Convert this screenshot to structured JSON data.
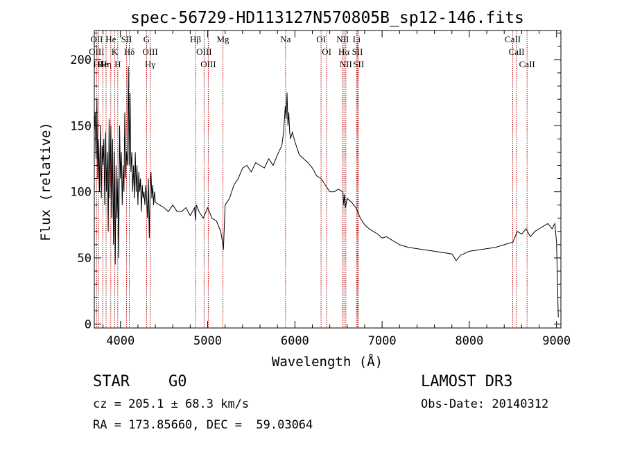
{
  "chart_data": {
    "type": "line",
    "title": "spec-56729-HD113127N570805B_sp12-146.fits",
    "xlabel": "Wavelength (Å)",
    "ylabel": "Flux (relative)",
    "xlim": [
      3700,
      9050
    ],
    "ylim": [
      -3,
      222
    ],
    "xticks": [
      4000,
      5000,
      6000,
      7000,
      8000,
      9000
    ],
    "yticks": [
      0,
      50,
      100,
      150,
      200
    ],
    "grid": false,
    "series": [
      {
        "name": "flux",
        "x": [
          3700,
          3710,
          3720,
          3730,
          3740,
          3750,
          3760,
          3770,
          3780,
          3790,
          3800,
          3810,
          3820,
          3830,
          3840,
          3850,
          3860,
          3870,
          3880,
          3890,
          3900,
          3910,
          3920,
          3930,
          3940,
          3950,
          3960,
          3970,
          3980,
          3990,
          4000,
          4010,
          4020,
          4030,
          4040,
          4050,
          4060,
          4070,
          4080,
          4090,
          4100,
          4110,
          4120,
          4130,
          4140,
          4150,
          4160,
          4170,
          4180,
          4190,
          4200,
          4210,
          4220,
          4230,
          4240,
          4250,
          4260,
          4270,
          4280,
          4290,
          4300,
          4310,
          4320,
          4330,
          4340,
          4350,
          4360,
          4370,
          4380,
          4390,
          4400,
          4450,
          4500,
          4550,
          4600,
          4650,
          4700,
          4750,
          4800,
          4850,
          4860,
          4870,
          4900,
          4950,
          5000,
          5050,
          5100,
          5150,
          5170,
          5180,
          5190,
          5200,
          5250,
          5300,
          5350,
          5400,
          5450,
          5500,
          5550,
          5600,
          5650,
          5700,
          5750,
          5800,
          5850,
          5870,
          5890,
          5900,
          5910,
          5920,
          5930,
          5940,
          5950,
          5970,
          6000,
          6050,
          6100,
          6150,
          6200,
          6250,
          6300,
          6350,
          6400,
          6450,
          6500,
          6550,
          6560,
          6570,
          6580,
          6600,
          6650,
          6700,
          6750,
          6800,
          6850,
          6900,
          6950,
          7000,
          7050,
          7100,
          7150,
          7200,
          7300,
          7400,
          7500,
          7600,
          7700,
          7800,
          7850,
          7900,
          8000,
          8100,
          8200,
          8300,
          8400,
          8500,
          8550,
          8600,
          8650,
          8700,
          8750,
          8800,
          8850,
          8900,
          8950,
          8980,
          9000,
          9020
        ],
        "y": [
          145,
          160,
          125,
          170,
          110,
          140,
          100,
          150,
          95,
          135,
          120,
          140,
          90,
          145,
          100,
          130,
          70,
          155,
          95,
          150,
          80,
          140,
          60,
          130,
          45,
          120,
          80,
          110,
          50,
          150,
          110,
          130,
          90,
          120,
          100,
          160,
          110,
          130,
          120,
          195,
          120,
          175,
          115,
          130,
          100,
          120,
          95,
          130,
          100,
          120,
          90,
          115,
          100,
          110,
          85,
          105,
          95,
          100,
          90,
          105,
          95,
          80,
          110,
          65,
          100,
          115,
          95,
          105,
          90,
          100,
          92,
          90,
          88,
          85,
          90,
          85,
          85,
          88,
          82,
          88,
          78,
          90,
          85,
          80,
          88,
          80,
          78,
          70,
          62,
          56,
          72,
          90,
          95,
          105,
          110,
          118,
          120,
          115,
          122,
          120,
          118,
          125,
          120,
          128,
          135,
          145,
          165,
          155,
          175,
          150,
          160,
          145,
          140,
          145,
          138,
          128,
          125,
          122,
          118,
          112,
          110,
          105,
          100,
          100,
          102,
          100,
          90,
          98,
          88,
          95,
          92,
          88,
          80,
          75,
          72,
          70,
          68,
          65,
          66,
          64,
          62,
          60,
          58,
          57,
          56,
          55,
          54,
          53,
          48,
          52,
          55,
          56,
          57,
          58,
          60,
          62,
          70,
          68,
          72,
          66,
          70,
          72,
          74,
          76,
          72,
          76,
          62,
          5
        ],
        "color": "#000000"
      }
    ],
    "lines": [
      {
        "x": 3727,
        "labels": [
          "OII",
          "OIII"
        ]
      },
      {
        "x": 3750,
        "labels": [
          "Hδ"
        ]
      },
      {
        "x": 3798,
        "labels": [
          "He"
        ]
      },
      {
        "x": 3835,
        "labels": [
          "Hη"
        ]
      },
      {
        "x": 3889,
        "labels": [
          "He"
        ]
      },
      {
        "x": 3934,
        "labels": [
          "K"
        ]
      },
      {
        "x": 3969,
        "labels": [
          "H"
        ]
      },
      {
        "x": 4070,
        "labels": [
          "SII"
        ]
      },
      {
        "x": 4102,
        "labels": [
          "Hδ"
        ]
      },
      {
        "x": 4300,
        "labels": [
          "G"
        ]
      },
      {
        "x": 4340,
        "labels": [
          "OIII",
          "Hγ"
        ]
      },
      {
        "x": 4861,
        "labels": [
          "Hβ"
        ]
      },
      {
        "x": 4959,
        "labels": [
          "OIII"
        ]
      },
      {
        "x": 5007,
        "labels": [
          "OIII"
        ]
      },
      {
        "x": 5175,
        "labels": [
          "Mg"
        ]
      },
      {
        "x": 5893,
        "labels": [
          "Na"
        ]
      },
      {
        "x": 6300,
        "labels": [
          "OI"
        ]
      },
      {
        "x": 6364,
        "labels": [
          "OI"
        ]
      },
      {
        "x": 6548,
        "labels": [
          "NII"
        ]
      },
      {
        "x": 6563,
        "labels": [
          "Hα"
        ]
      },
      {
        "x": 6584,
        "labels": [
          "NII"
        ]
      },
      {
        "x": 6708,
        "labels": [
          "Li"
        ]
      },
      {
        "x": 6717,
        "labels": [
          "SII"
        ]
      },
      {
        "x": 6731,
        "labels": [
          "SII"
        ]
      },
      {
        "x": 8498,
        "labels": [
          "CaII"
        ]
      },
      {
        "x": 8542,
        "labels": [
          "CaII"
        ]
      },
      {
        "x": 8662,
        "labels": [
          "CaII"
        ]
      }
    ]
  },
  "info": {
    "class": "STAR",
    "subclass": "G0",
    "survey": "LAMOST DR3",
    "cz": "cz = 205.1 ± 68.3 km/s",
    "obs_date": "Obs-Date: 20140312",
    "coords": "RA = 173.85660, DEC =  59.03064"
  },
  "colors": {
    "spectrum": "#000000",
    "line_marker": "#b30000",
    "axes": "#000000"
  }
}
